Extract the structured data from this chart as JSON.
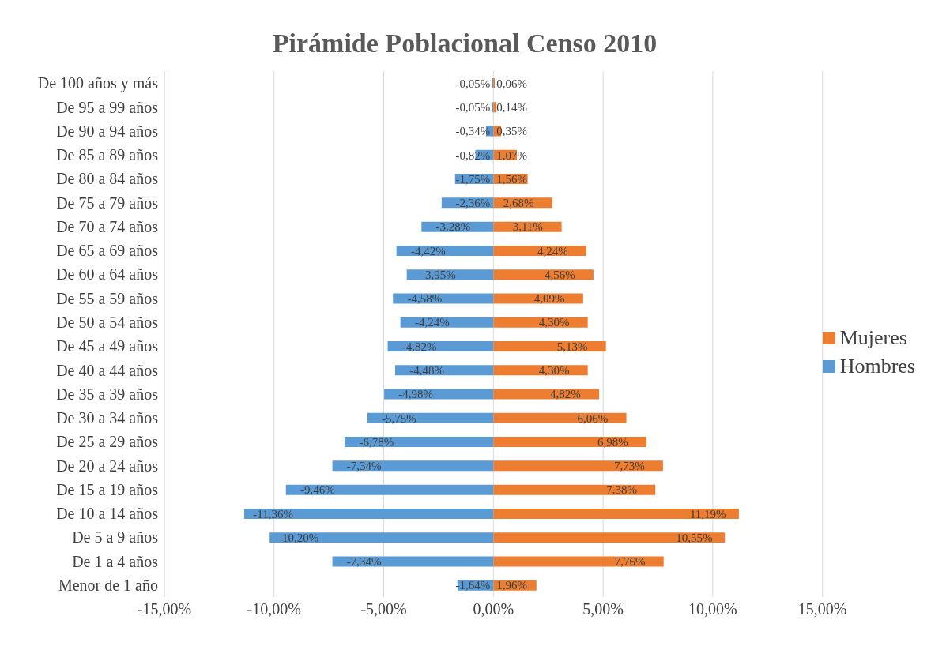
{
  "chart_data": {
    "type": "bar",
    "orientation": "horizontal",
    "stacked": true,
    "title": "Pirámide Poblacional Censo 2010",
    "categories": [
      "De 100 años y más",
      "De 95 a 99 años",
      "De 90 a 94 años",
      "De 85 a 89 años",
      "De 80 a 84 años",
      "De 75 a 79 años",
      "De 70 a 74 años",
      "De 65 a 69 años",
      "De 60 a 64 años",
      "De 55 a 59 años",
      "De 50 a 54 años",
      "De 45 a 49 años",
      "De 40 a 44 años",
      "De 35 a 39 años",
      "De 30 a 34 años",
      "De 25 a 29 años",
      "De 20 a 24 años",
      "De 15 a 19 años",
      "De 10 a 14 años",
      "De 5 a 9 años",
      "De 1 a 4 años",
      "Menor de 1 año"
    ],
    "series": [
      {
        "name": "Mujeres",
        "color": "#ed7d31",
        "values": [
          0.06,
          0.14,
          0.35,
          1.07,
          1.56,
          2.68,
          3.11,
          4.24,
          4.56,
          4.09,
          4.3,
          5.13,
          4.3,
          4.82,
          6.06,
          6.98,
          7.73,
          7.38,
          11.19,
          10.55,
          7.76,
          1.96
        ],
        "value_labels": [
          "0,06%",
          "0,14%",
          "0,35%",
          "1,07%",
          "1,56%",
          "2,68%",
          "3,11%",
          "4,24%",
          "4,56%",
          "4,09%",
          "4,30%",
          "5,13%",
          "4,30%",
          "4,82%",
          "6,06%",
          "6,98%",
          "7,73%",
          "7,38%",
          "11,19%",
          "10,55%",
          "7,76%",
          "1,96%"
        ]
      },
      {
        "name": "Hombres",
        "color": "#5b9bd5",
        "values": [
          -0.05,
          -0.05,
          -0.34,
          -0.82,
          -1.75,
          -2.36,
          -3.28,
          -4.42,
          -3.95,
          -4.58,
          -4.24,
          -4.82,
          -4.48,
          -4.98,
          -5.75,
          -6.78,
          -7.34,
          -9.46,
          -11.36,
          -10.2,
          -7.34,
          -1.64
        ],
        "value_labels": [
          "-0,05%",
          "-0,05%",
          "-0,34%",
          "-0,82%",
          "-1,75%",
          "-2,36%",
          "-3,28%",
          "-4,42%",
          "-3,95%",
          "-4,58%",
          "-4,24%",
          "-4,82%",
          "-4,48%",
          "-4,98%",
          "-5,75%",
          "-6,78%",
          "-7,34%",
          "-9,46%",
          "-11,36%",
          "-10,20%",
          "-7,34%",
          "-1,64%"
        ]
      }
    ],
    "xlim": [
      -15,
      15
    ],
    "xticks": [
      {
        "value": -15,
        "label": "-15,00%"
      },
      {
        "value": -10,
        "label": "-10,00%"
      },
      {
        "value": -5,
        "label": "-5,00%"
      },
      {
        "value": 0,
        "label": "0,00%"
      },
      {
        "value": 5,
        "label": "5,00%"
      },
      {
        "value": 10,
        "label": "10,00%"
      },
      {
        "value": 15,
        "label": "15,00%"
      }
    ],
    "grid": "x",
    "legend": "right"
  }
}
